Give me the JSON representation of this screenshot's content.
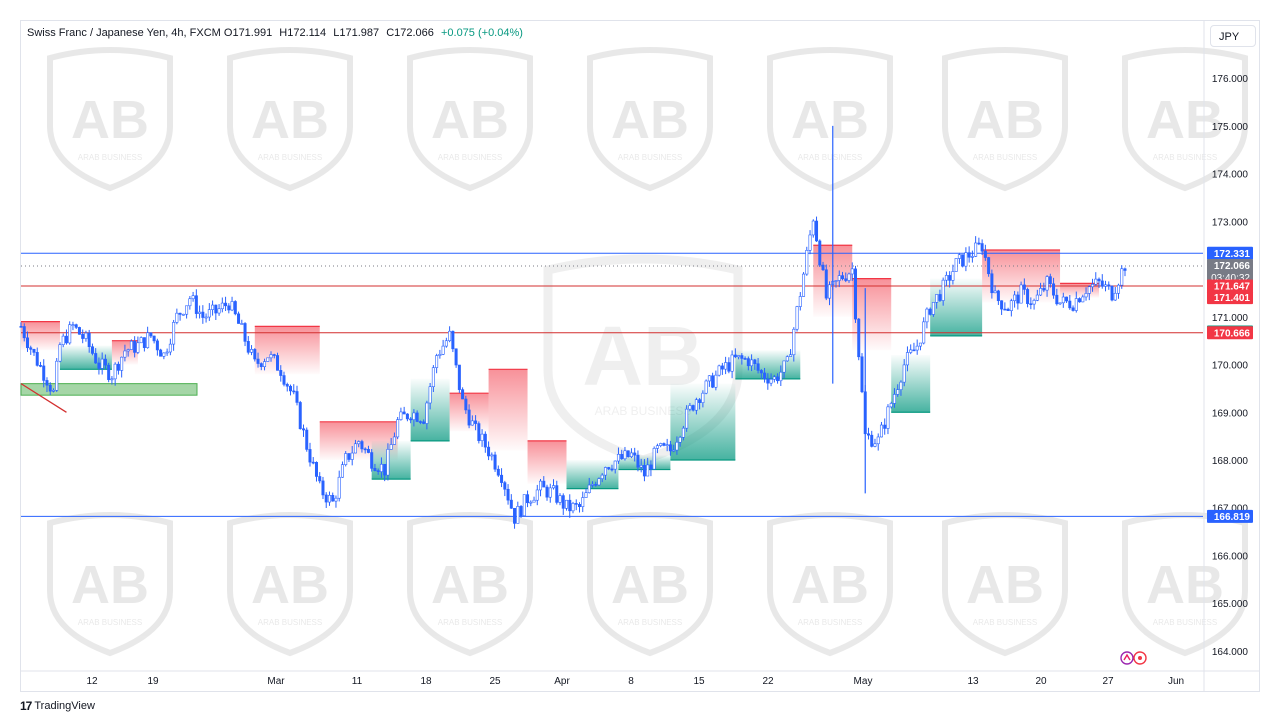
{
  "header": {
    "symbol_title": "Swiss Franc / Japanese Yen, 4h, FXCM",
    "open": "O171.991",
    "high": "H172.114",
    "low": "L171.987",
    "close": "C172.066",
    "change": "+0.075 (+0.04%)",
    "currency_button": "JPY"
  },
  "footer": {
    "brand": "TradingView"
  },
  "watermark": {
    "text": "ARAB BUSINESS"
  },
  "colors": {
    "candle": "#2962ff",
    "blue_level": "#2962ff",
    "red_level": "#d32f2f",
    "cloud_red": "#f23645",
    "cloud_green": "#089981",
    "zone_green": "#4caf50"
  },
  "chart_data": {
    "type": "candlestick",
    "title": "Swiss Franc / Japanese Yen, 4h, FXCM",
    "ylim": [
      163.6,
      176.8
    ],
    "y_ticks": [
      "176.000",
      "175.000",
      "174.000",
      "173.000",
      "172.000",
      "171.000",
      "170.000",
      "169.000",
      "168.000",
      "167.000",
      "166.000",
      "165.000",
      "164.000"
    ],
    "x_ticks": [
      "12",
      "19",
      "Mar",
      "11",
      "18",
      "25",
      "Apr",
      "8",
      "15",
      "22",
      "May",
      "13",
      "20",
      "27",
      "Jun"
    ],
    "price_path": [
      [
        0,
        170.8
      ],
      [
        2,
        170.2
      ],
      [
        4,
        169.7
      ],
      [
        5,
        169.4
      ],
      [
        6,
        170.4
      ],
      [
        8,
        170.8
      ],
      [
        10,
        170.5
      ],
      [
        12,
        170.0
      ],
      [
        14,
        169.8
      ],
      [
        16,
        170.3
      ],
      [
        18,
        170.4
      ],
      [
        20,
        170.6
      ],
      [
        22,
        170.2
      ],
      [
        24,
        171.0
      ],
      [
        26,
        171.4
      ],
      [
        28,
        171.0
      ],
      [
        30,
        171.1
      ],
      [
        32,
        171.3
      ],
      [
        34,
        170.7
      ],
      [
        36,
        170.0
      ],
      [
        38,
        170.2
      ],
      [
        40,
        169.9
      ],
      [
        42,
        169.3
      ],
      [
        44,
        168.3
      ],
      [
        46,
        167.4
      ],
      [
        48,
        167.1
      ],
      [
        50,
        168.0
      ],
      [
        52,
        168.4
      ],
      [
        54,
        168.0
      ],
      [
        56,
        167.8
      ],
      [
        58,
        168.8
      ],
      [
        60,
        169.0
      ],
      [
        62,
        168.9
      ],
      [
        64,
        170.2
      ],
      [
        66,
        170.6
      ],
      [
        68,
        169.2
      ],
      [
        70,
        168.6
      ],
      [
        72,
        168.2
      ],
      [
        74,
        167.7
      ],
      [
        76,
        166.8
      ],
      [
        78,
        167.2
      ],
      [
        80,
        167.4
      ],
      [
        82,
        167.3
      ],
      [
        84,
        167.0
      ],
      [
        86,
        167.0
      ],
      [
        88,
        167.5
      ],
      [
        90,
        167.9
      ],
      [
        92,
        168.0
      ],
      [
        94,
        168.1
      ],
      [
        96,
        167.7
      ],
      [
        98,
        168.2
      ],
      [
        100,
        168.2
      ],
      [
        102,
        168.8
      ],
      [
        104,
        169.3
      ],
      [
        106,
        169.6
      ],
      [
        108,
        169.9
      ],
      [
        110,
        170.1
      ],
      [
        112,
        170.1
      ],
      [
        114,
        169.8
      ],
      [
        116,
        169.7
      ],
      [
        118,
        170.0
      ],
      [
        120,
        171.5
      ],
      [
        122,
        173.1
      ],
      [
        124,
        171.4
      ],
      [
        126,
        171.8
      ],
      [
        128,
        172.0
      ],
      [
        130,
        168.5
      ],
      [
        132,
        168.4
      ],
      [
        134,
        169.2
      ],
      [
        136,
        170.0
      ],
      [
        138,
        170.4
      ],
      [
        140,
        171.2
      ],
      [
        142,
        171.6
      ],
      [
        144,
        172.1
      ],
      [
        146,
        172.3
      ],
      [
        148,
        172.5
      ],
      [
        150,
        171.4
      ],
      [
        152,
        171.2
      ],
      [
        154,
        171.5
      ],
      [
        156,
        171.3
      ],
      [
        158,
        171.7
      ],
      [
        160,
        171.3
      ],
      [
        162,
        171.3
      ],
      [
        164,
        171.6
      ],
      [
        166,
        171.7
      ],
      [
        168,
        171.5
      ],
      [
        170,
        172.1
      ]
    ],
    "index_range": [
      0,
      170
    ],
    "spikes": [
      {
        "index": 125,
        "high": 175.0,
        "low": 169.6
      },
      {
        "index": 130,
        "high": 171.6,
        "low": 167.3
      }
    ],
    "levels": [
      {
        "name": "resistance",
        "value": 172.331,
        "label": "172.331",
        "color": "#2962ff"
      },
      {
        "name": "current-price",
        "value": 172.066,
        "label": "172.066",
        "color": "#787b86",
        "countdown": "03:40:32"
      },
      {
        "name": "upper-red",
        "value": 171.647,
        "label": "171.647",
        "color": "#f23645"
      },
      {
        "name": "upper-red-2",
        "value": 171.401,
        "label": "171.401",
        "color": "#f23645"
      },
      {
        "name": "lower-red",
        "value": 170.681,
        "label": "170.681",
        "color": "#089981"
      },
      {
        "name": "lower-red-2",
        "value": 170.666,
        "label": "170.666",
        "color": "#f23645"
      },
      {
        "name": "support",
        "value": 166.819,
        "label": "166.819",
        "color": "#2962ff"
      }
    ],
    "clouds": [
      {
        "type": "red",
        "i0": 0,
        "i1": 6,
        "top": 170.9,
        "base": 170.3
      },
      {
        "type": "green",
        "i0": 6,
        "i1": 14,
        "top": 170.4,
        "base": 169.9
      },
      {
        "type": "red",
        "i0": 14,
        "i1": 18,
        "top": 170.5,
        "base": 170.0
      },
      {
        "type": "red",
        "i0": 36,
        "i1": 46,
        "top": 170.8,
        "base": 169.8
      },
      {
        "type": "red",
        "i0": 46,
        "i1": 58,
        "top": 168.8,
        "base": 168.0
      },
      {
        "type": "green",
        "i0": 54,
        "i1": 60,
        "top": 168.4,
        "base": 167.6
      },
      {
        "type": "green",
        "i0": 60,
        "i1": 66,
        "top": 169.7,
        "base": 168.4
      },
      {
        "type": "red",
        "i0": 66,
        "i1": 72,
        "top": 169.4,
        "base": 168.6
      },
      {
        "type": "red",
        "i0": 72,
        "i1": 78,
        "top": 169.9,
        "base": 168.2
      },
      {
        "type": "red",
        "i0": 78,
        "i1": 84,
        "top": 168.4,
        "base": 167.5
      },
      {
        "type": "green",
        "i0": 84,
        "i1": 92,
        "top": 168.0,
        "base": 167.4
      },
      {
        "type": "green",
        "i0": 92,
        "i1": 100,
        "top": 168.1,
        "base": 167.8
      },
      {
        "type": "green",
        "i0": 100,
        "i1": 110,
        "top": 169.6,
        "base": 168.0
      },
      {
        "type": "green",
        "i0": 110,
        "i1": 120,
        "top": 170.3,
        "base": 169.7
      },
      {
        "type": "red",
        "i0": 122,
        "i1": 128,
        "top": 172.5,
        "base": 171.0
      },
      {
        "type": "red",
        "i0": 128,
        "i1": 134,
        "top": 171.8,
        "base": 170.3
      },
      {
        "type": "green",
        "i0": 134,
        "i1": 140,
        "top": 170.2,
        "base": 169.0
      },
      {
        "type": "green",
        "i0": 140,
        "i1": 148,
        "top": 171.8,
        "base": 170.6
      },
      {
        "type": "red",
        "i0": 148,
        "i1": 160,
        "top": 172.4,
        "base": 171.3
      },
      {
        "type": "red",
        "i0": 160,
        "i1": 166,
        "top": 171.7,
        "base": 171.4
      }
    ],
    "green_zone": {
      "i0": 0,
      "i1": 26,
      "top": 169.6,
      "bottom": 169.4
    },
    "red_trendline": {
      "from": [
        0,
        169.6
      ],
      "to": [
        7,
        169.0
      ]
    }
  }
}
